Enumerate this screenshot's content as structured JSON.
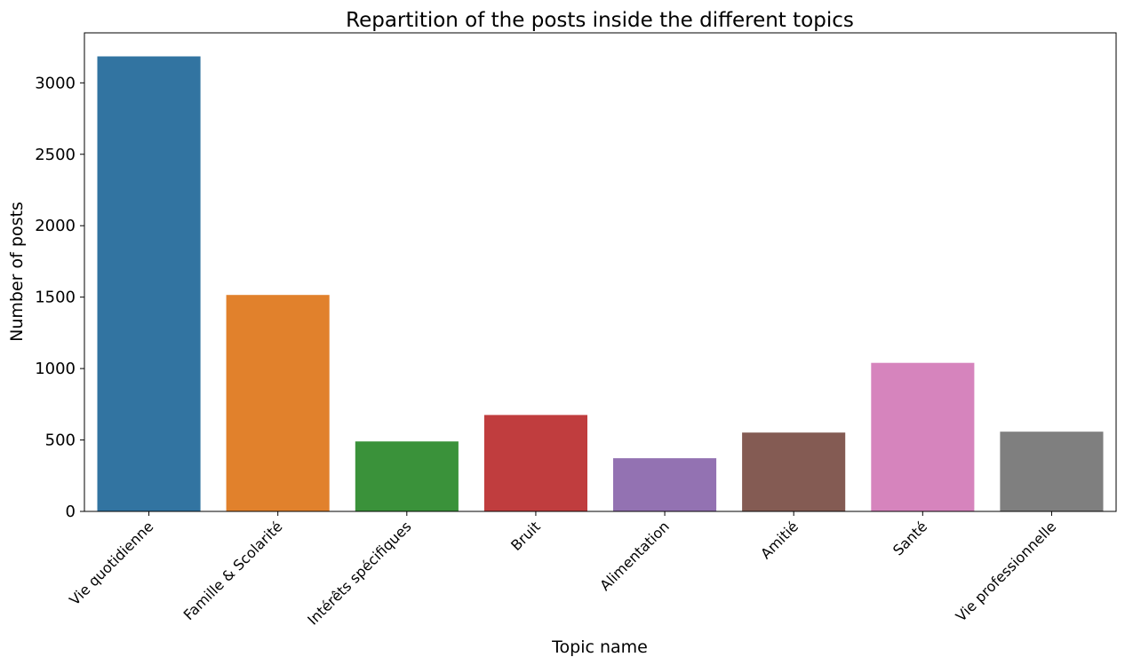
{
  "chart_data": {
    "type": "bar",
    "title": "Repartition of the posts inside the different topics",
    "xlabel": "Topic name",
    "ylabel": "Number of posts",
    "categories": [
      "Vie quotidienne",
      "Famille & Scolarité",
      "Intérêts spécifiques",
      "Bruit",
      "Alimentation",
      "Amitié",
      "Santé",
      "Vie professionnelle"
    ],
    "values": [
      3185,
      1515,
      490,
      675,
      372,
      552,
      1040,
      558
    ],
    "colors": [
      "#3274a1",
      "#e1812c",
      "#3a923a",
      "#c03d3e",
      "#9372b2",
      "#845b53",
      "#d684bd",
      "#7f7f7f"
    ],
    "ylim": [
      0,
      3350
    ],
    "yticks": [
      0,
      500,
      1000,
      1500,
      2000,
      2500,
      3000
    ],
    "grid": false,
    "legend": "none"
  }
}
